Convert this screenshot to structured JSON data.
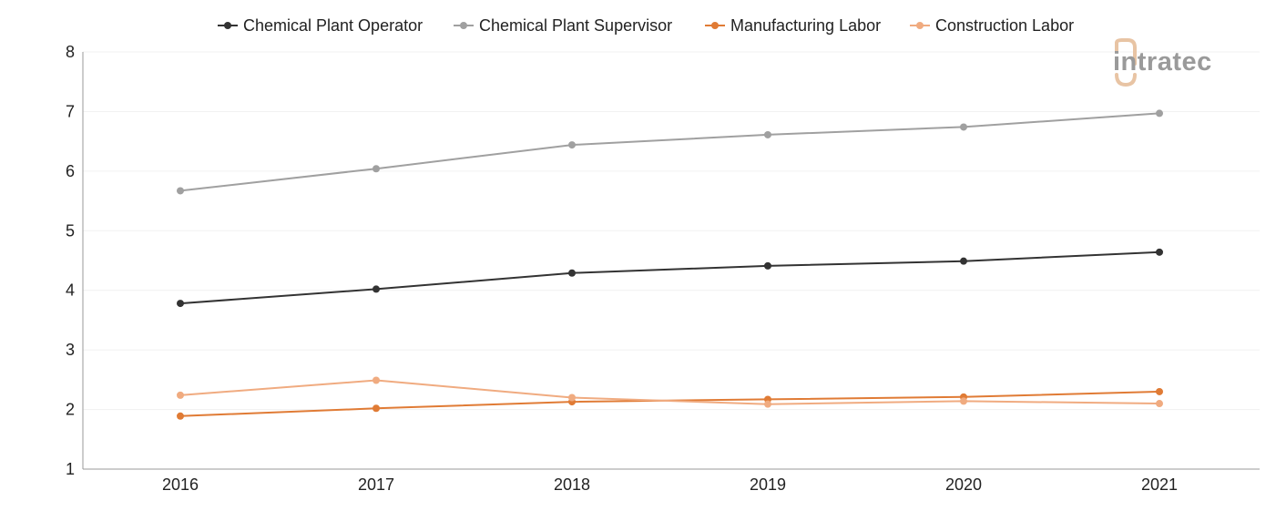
{
  "chart_data": {
    "type": "line",
    "x": [
      "2016",
      "2017",
      "2018",
      "2019",
      "2020",
      "2021"
    ],
    "ylim": [
      1,
      8
    ],
    "y_ticks": [
      1,
      2,
      3,
      4,
      5,
      6,
      7,
      8
    ],
    "ylabel": "",
    "xlabel": "",
    "title": "",
    "grid": true,
    "legend_position": "top-center",
    "series": [
      {
        "name": "Chemical Plant Operator",
        "color": "#333333",
        "values": [
          3.78,
          4.02,
          4.29,
          4.41,
          4.49,
          4.64
        ]
      },
      {
        "name": "Chemical Plant Supervisor",
        "color": "#a0a0a0",
        "values": [
          5.67,
          6.04,
          6.44,
          6.61,
          6.74,
          6.97
        ]
      },
      {
        "name": "Manufacturing Labor",
        "color": "#e07b35",
        "values": [
          1.89,
          2.02,
          2.13,
          2.17,
          2.21,
          2.3
        ]
      },
      {
        "name": "Construction Labor",
        "color": "#f0ab80",
        "values": [
          2.24,
          2.49,
          2.2,
          2.09,
          2.14,
          2.1
        ]
      }
    ]
  },
  "watermark": {
    "text": "intratec",
    "color": "#9a9a9a",
    "accent": "#e8c4a4"
  }
}
